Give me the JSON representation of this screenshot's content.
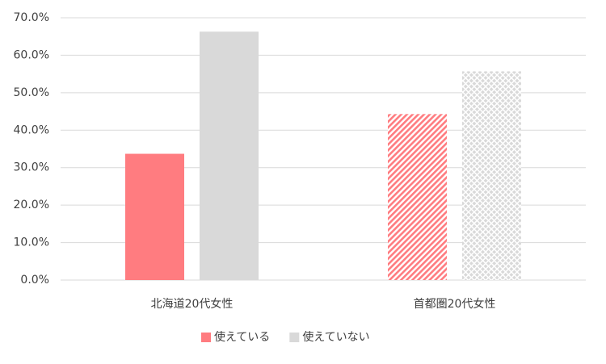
{
  "chart_data": {
    "type": "bar",
    "categories": [
      "北海道20代女性",
      "首都圏20代女性"
    ],
    "series": [
      {
        "name": "使えている",
        "color": "#ff7c80",
        "values": [
          33.7,
          44.3
        ]
      },
      {
        "name": "使えていない",
        "color": "#d9d9d9",
        "values": [
          66.3,
          55.7
        ]
      }
    ],
    "ylim": [
      0,
      70
    ],
    "yticks": [
      {
        "value": 0,
        "label": "0.0%"
      },
      {
        "value": 10,
        "label": "10.0%"
      },
      {
        "value": 20,
        "label": "20.0%"
      },
      {
        "value": 30,
        "label": "30.0%"
      },
      {
        "value": 40,
        "label": "40.0%"
      },
      {
        "value": 50,
        "label": "50.0%"
      },
      {
        "value": 60,
        "label": "60.0%"
      },
      {
        "value": 70,
        "label": "70.0%"
      }
    ],
    "grid": true,
    "legend": "bottom"
  }
}
